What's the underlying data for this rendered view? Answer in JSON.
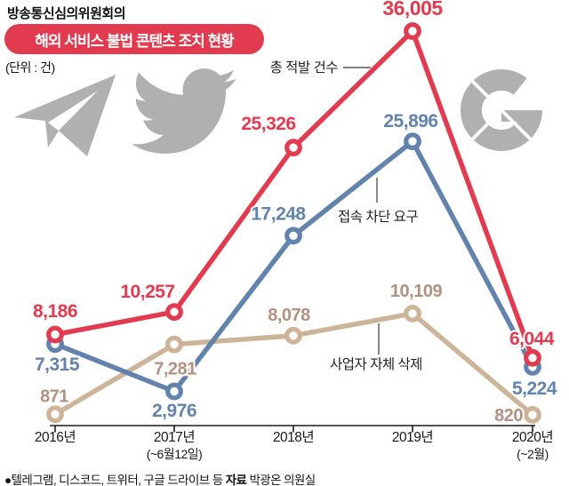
{
  "header": {
    "org": "방송통신심의위원회의",
    "title": "해외 서비스 불법 콘텐츠 조치 현황",
    "unit": "(단위 : 건)"
  },
  "colors": {
    "red": "#e23b50",
    "blue": "#6283ad",
    "tan": "#cdb499",
    "tan_label": "#b3907f",
    "logo_gray": "#b0b0b0",
    "axis": "#1a1a1a",
    "annotation_text": "#222222",
    "annotation_line": "#555555",
    "title_bg": "#e23b50",
    "title_text": "#ffffff"
  },
  "chart_data": {
    "type": "line",
    "categories": [
      "2016년",
      "2017년",
      "2018년",
      "2019년",
      "2020년"
    ],
    "category_subnotes": [
      "",
      "(~6월12일)",
      "",
      "",
      "(~2월)"
    ],
    "series": [
      {
        "name": "총 적발 건수",
        "color_key": "red",
        "values": [
          8186,
          10257,
          25326,
          36005,
          6044
        ]
      },
      {
        "name": "접속 차단 요구",
        "color_key": "blue",
        "values": [
          7315,
          2976,
          17248,
          25896,
          5224
        ]
      },
      {
        "name": "사업자 자체 삭제",
        "color_key": "tan",
        "values": [
          871,
          7281,
          8078,
          10109,
          820
        ]
      }
    ],
    "ylim": [
      0,
      37000
    ],
    "grid": false,
    "legend": "inline-annotations",
    "point_style": "open-circle"
  },
  "icons": {
    "telegram": "telegram-icon",
    "twitter": "twitter-icon",
    "google": "google-icon"
  },
  "footer": {
    "note": "●텔레그램, 디스코드, 트위터, 구글 드라이브 등",
    "source_label": "자료",
    "source": "박광온 의원실"
  }
}
